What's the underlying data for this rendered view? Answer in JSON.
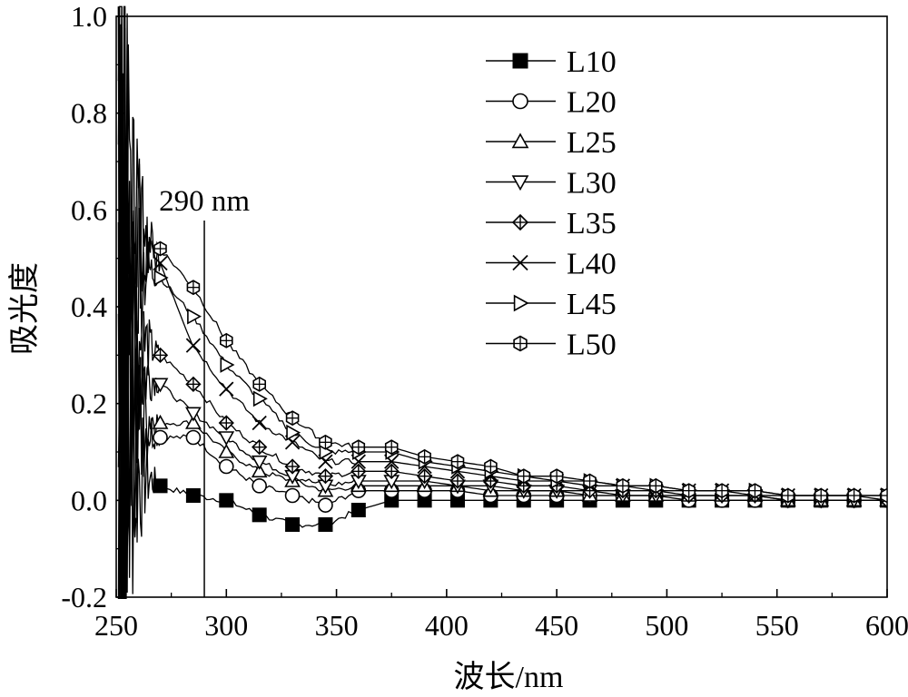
{
  "chart_data": {
    "type": "line",
    "title": "",
    "xlabel": "波长/nm",
    "ylabel": "吸光度",
    "xlim": [
      250,
      600
    ],
    "ylim": [
      -0.2,
      1.0
    ],
    "xticks": [
      "250",
      "300",
      "350",
      "400",
      "450",
      "500",
      "550",
      "600"
    ],
    "yticks": [
      "-0.2",
      "0.0",
      "0.2",
      "0.4",
      "0.6",
      "0.8",
      "1.0"
    ],
    "grid": false,
    "legend_position": "top-right",
    "annotation": {
      "text": "290 nm",
      "x": 290
    },
    "marker_x": [
      270,
      285,
      300,
      315,
      330,
      345,
      360,
      375,
      390,
      405,
      420,
      435,
      450,
      465,
      480,
      495,
      510,
      525,
      540,
      555,
      570,
      585,
      600
    ],
    "series": [
      {
        "name": "L10",
        "marker": "square-filled",
        "values": [
          0.03,
          0.01,
          0.0,
          -0.03,
          -0.05,
          -0.05,
          -0.02,
          0.0,
          0.0,
          0.0,
          0.0,
          0.0,
          0.0,
          0.0,
          0.0,
          0.0,
          0.0,
          0.0,
          0.0,
          0.0,
          0.0,
          0.0,
          0.0
        ]
      },
      {
        "name": "L20",
        "marker": "circle",
        "values": [
          0.13,
          0.13,
          0.07,
          0.03,
          0.01,
          -0.01,
          0.02,
          0.02,
          0.02,
          0.02,
          0.01,
          0.01,
          0.01,
          0.01,
          0.01,
          0.01,
          0.0,
          0.0,
          0.0,
          0.0,
          0.0,
          0.0,
          0.0
        ]
      },
      {
        "name": "L25",
        "marker": "triangle-up",
        "values": [
          0.16,
          0.16,
          0.1,
          0.06,
          0.04,
          0.02,
          0.03,
          0.03,
          0.03,
          0.03,
          0.02,
          0.02,
          0.02,
          0.01,
          0.01,
          0.01,
          0.01,
          0.01,
          0.01,
          0.0,
          0.0,
          0.0,
          0.0
        ]
      },
      {
        "name": "L30",
        "marker": "triangle-down",
        "values": [
          0.24,
          0.18,
          0.13,
          0.08,
          0.05,
          0.03,
          0.04,
          0.04,
          0.04,
          0.03,
          0.03,
          0.02,
          0.02,
          0.02,
          0.01,
          0.01,
          0.01,
          0.01,
          0.01,
          0.0,
          0.0,
          0.0,
          0.0
        ]
      },
      {
        "name": "L35",
        "marker": "diamond-cross",
        "values": [
          0.3,
          0.24,
          0.16,
          0.11,
          0.07,
          0.05,
          0.06,
          0.06,
          0.05,
          0.04,
          0.04,
          0.03,
          0.03,
          0.02,
          0.02,
          0.02,
          0.01,
          0.01,
          0.01,
          0.01,
          0.01,
          0.01,
          0.0
        ]
      },
      {
        "name": "L40",
        "marker": "x",
        "values": [
          0.49,
          0.32,
          0.23,
          0.16,
          0.12,
          0.08,
          0.08,
          0.08,
          0.07,
          0.06,
          0.05,
          0.04,
          0.04,
          0.03,
          0.03,
          0.02,
          0.02,
          0.02,
          0.01,
          0.01,
          0.01,
          0.01,
          0.01
        ]
      },
      {
        "name": "L45",
        "marker": "triangle-right",
        "values": [
          0.46,
          0.38,
          0.28,
          0.21,
          0.14,
          0.1,
          0.1,
          0.1,
          0.08,
          0.07,
          0.06,
          0.05,
          0.04,
          0.04,
          0.03,
          0.03,
          0.02,
          0.02,
          0.02,
          0.01,
          0.01,
          0.01,
          0.01
        ]
      },
      {
        "name": "L50",
        "marker": "hexagon",
        "values": [
          0.52,
          0.44,
          0.33,
          0.24,
          0.17,
          0.12,
          0.11,
          0.11,
          0.09,
          0.08,
          0.07,
          0.05,
          0.05,
          0.04,
          0.03,
          0.03,
          0.02,
          0.02,
          0.02,
          0.01,
          0.01,
          0.01,
          0.01
        ]
      }
    ]
  }
}
